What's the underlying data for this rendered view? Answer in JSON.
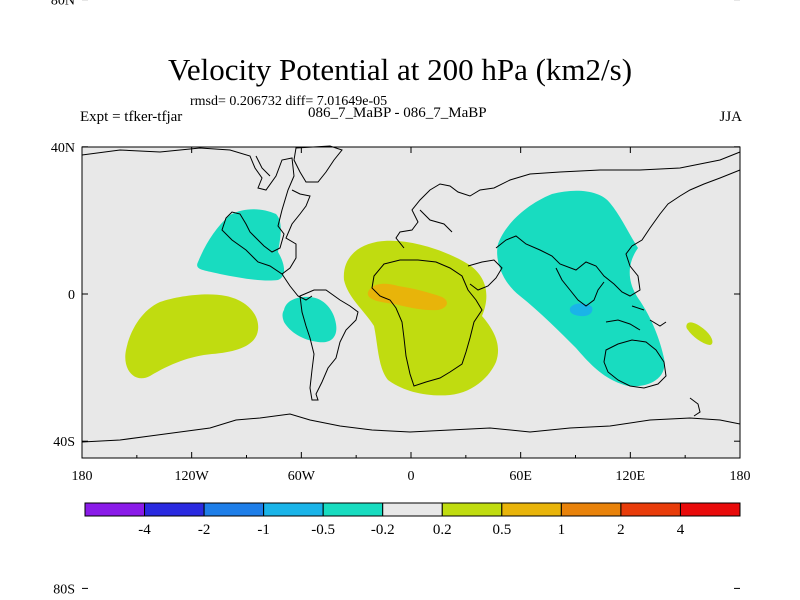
{
  "title": "Velocity Potential at 200 hPa (km2/s)",
  "stats_line": "rmsd= 0.206732 diff= 7.01649e-05",
  "left_label": "Expt = tfker-tfjar",
  "center_label": "086_7_MaBP - 086_7_MaBP",
  "right_label": "JJA",
  "map": {
    "background_color": "#e8e8e8",
    "x_ticks": [
      {
        "lon": -180,
        "label": "180"
      },
      {
        "lon": -120,
        "label": "120W"
      },
      {
        "lon": -60,
        "label": "60W"
      },
      {
        "lon": 0,
        "label": "0"
      },
      {
        "lon": 60,
        "label": "60E"
      },
      {
        "lon": 120,
        "label": "120E"
      },
      {
        "lon": 180,
        "label": "180"
      }
    ],
    "y_ticks": [
      {
        "lat": 80,
        "label": "80N"
      },
      {
        "lat": 40,
        "label": "40N"
      },
      {
        "lat": 0,
        "label": "0"
      },
      {
        "lat": -40,
        "label": "40S"
      },
      {
        "lat": -80,
        "label": "80S"
      }
    ]
  },
  "colorbar": {
    "colors": [
      "#8a1be8",
      "#2a2ae0",
      "#1e7ee8",
      "#1ab4e8",
      "#18dcc0",
      "#e8e8e8",
      "#c0dc10",
      "#e8b40a",
      "#e8820a",
      "#e83c0a",
      "#e80a0a"
    ],
    "labels": [
      "-4",
      "-2",
      "-1",
      "-0.5",
      "-0.2",
      "0.2",
      "0.5",
      "1",
      "2",
      "4"
    ]
  },
  "fields": [
    {
      "name": "central-positive-anomaly",
      "color": "#c0dc10"
    },
    {
      "name": "central-strong-anomaly",
      "color": "#e8b40a"
    },
    {
      "name": "south-pacific-positive-anomaly",
      "color": "#c0dc10"
    },
    {
      "name": "east-asia-negative-anomaly",
      "color": "#18dcc0"
    },
    {
      "name": "indian-ocean-strong-negative",
      "color": "#1ab4e8"
    },
    {
      "name": "north-pacific-negative-anomaly",
      "color": "#18dcc0"
    },
    {
      "name": "tropical-atlantic-negative-anomaly",
      "color": "#18dcc0"
    },
    {
      "name": "southwest-pacific-positive-anomaly",
      "color": "#c0dc10"
    }
  ]
}
